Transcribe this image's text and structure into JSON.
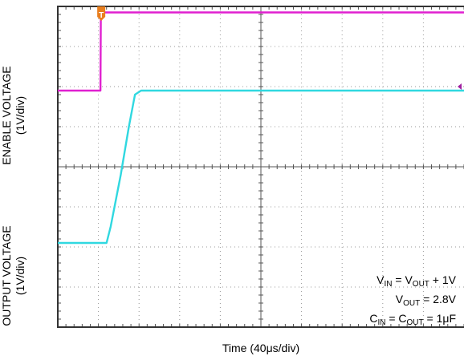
{
  "chart_data": {
    "type": "line",
    "ylabels": [
      {
        "title": "ENABLE VOLTAGE",
        "unit": "(1V/div)"
      },
      {
        "title": "OUTPUT VOLTAGE",
        "unit": "(1V/div)"
      }
    ],
    "xlabel": "Time (40μs/div)",
    "grid": true,
    "divisions": {
      "x": 10,
      "y": 8
    },
    "trigger_marker": "T",
    "colors": {
      "enable": "#e020d0",
      "output": "#30d8e0",
      "marker": "#e87e1e",
      "grid": "#9a9a9a"
    },
    "series": [
      {
        "name": "",
        "color": "#e020d0",
        "x": [
          0,
          1.05,
          1.06,
          10
        ],
        "y": [
          5.9,
          5.9,
          7.85,
          7.85
        ]
      },
      {
        "name": "",
        "color": "#30d8e0",
        "x": [
          0,
          1.2,
          1.3,
          1.55,
          1.75,
          1.9,
          2.05,
          10
        ],
        "y": [
          2.1,
          2.1,
          2.5,
          3.8,
          5.0,
          5.8,
          5.9,
          5.9
        ]
      }
    ],
    "annotation": [
      {
        "parts": [
          {
            "t": "V"
          },
          {
            "s": "IN"
          },
          {
            "t": " = V"
          },
          {
            "s": "OUT"
          },
          {
            "t": " + 1V"
          }
        ]
      },
      {
        "parts": [
          {
            "t": "V"
          },
          {
            "s": "OUT"
          },
          {
            "t": " = 2.8V"
          }
        ]
      },
      {
        "parts": [
          {
            "t": "C"
          },
          {
            "s": "IN"
          },
          {
            "t": " = C"
          },
          {
            "s": "OUT"
          },
          {
            "t": " = 1μF"
          }
        ]
      }
    ]
  }
}
